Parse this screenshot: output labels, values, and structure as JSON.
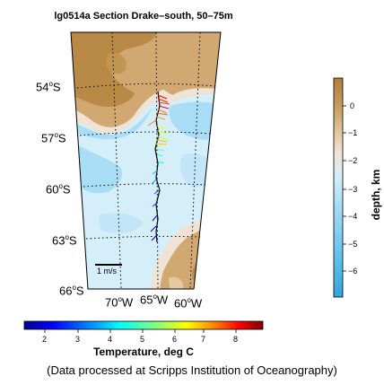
{
  "title": "lg0514a Section Drake–south, 50–75m",
  "lat_labels": [
    "54",
    "57",
    "60",
    "63",
    "66"
  ],
  "lat_suffix": "S",
  "lon_labels": [
    "70",
    "65",
    "60"
  ],
  "lon_suffix": "W",
  "degree_symbol": "o",
  "scale_label": "1 m/s",
  "depth_colorbar": {
    "label": "depth, km",
    "ticks": [
      "0",
      "−1",
      "−2",
      "−3",
      "−4",
      "−5",
      "−6"
    ],
    "colors": [
      "#b07d3a",
      "#c9a063",
      "#e6c9a3",
      "#efe3d6",
      "#e6f3fa",
      "#cceaf8",
      "#a8ddf5",
      "#6cc6ef",
      "#2fa6dd"
    ]
  },
  "temp_colorbar": {
    "label": "Temperature, deg C",
    "ticks": [
      "2",
      "3",
      "4",
      "5",
      "6",
      "7",
      "8"
    ],
    "colors": [
      "#00008f",
      "#0000ff",
      "#00a0ff",
      "#00ffff",
      "#80ff80",
      "#ffff00",
      "#ff8000",
      "#ff0000",
      "#800000"
    ]
  },
  "caption": "(Data processed at Scripps Institution of Oceanography)"
}
